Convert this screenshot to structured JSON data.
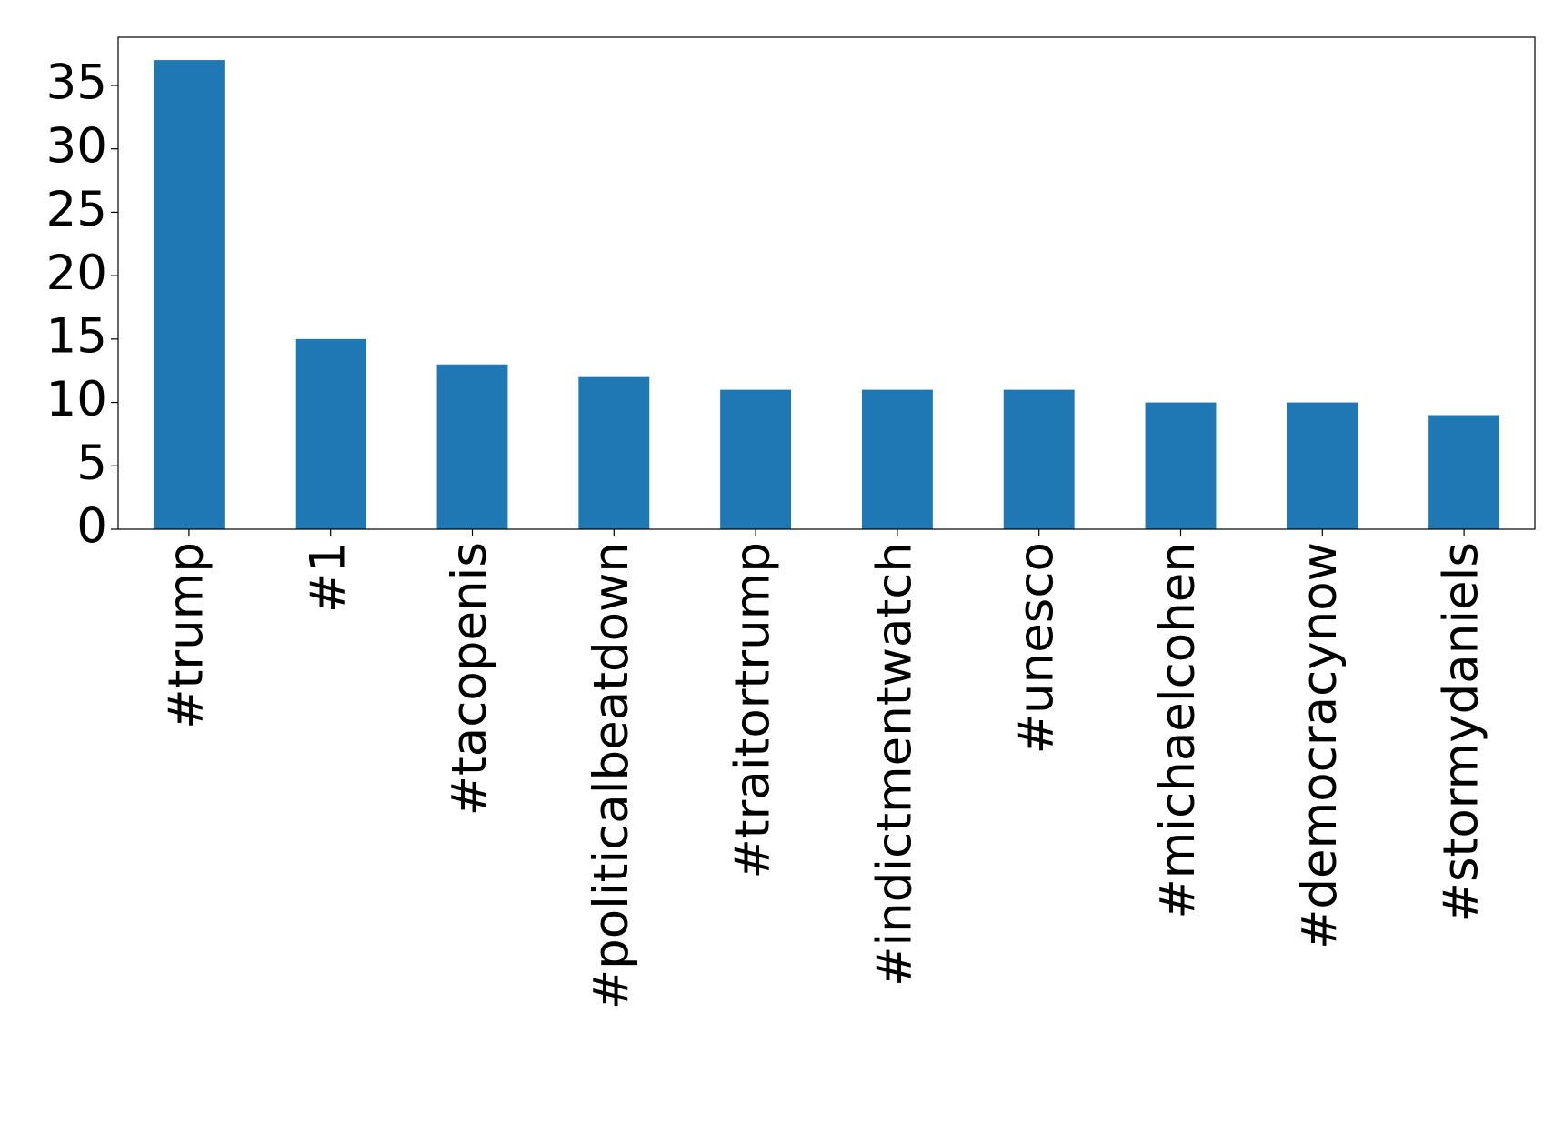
{
  "chart_data": {
    "type": "bar",
    "categories": [
      "#trump",
      "#1",
      "#tacopenis",
      "#politicalbeatdown",
      "#traitortrump",
      "#indictmentwatch",
      "#unesco",
      "#michaelcohen",
      "#democracynow",
      "#stormydaniels"
    ],
    "values": [
      37,
      15,
      13,
      12,
      11,
      11,
      11,
      10,
      10,
      9
    ],
    "color": "#1f77b4",
    "ylim": [
      0,
      38.8
    ],
    "yticks": [
      0,
      5,
      10,
      15,
      20,
      25,
      30,
      35
    ],
    "grid": false
  }
}
